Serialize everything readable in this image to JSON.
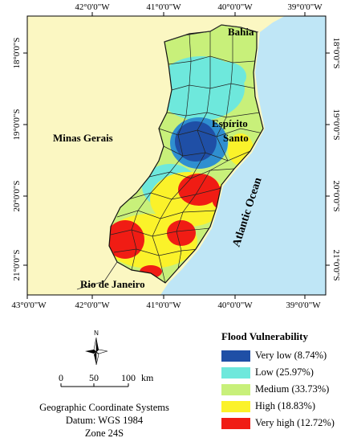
{
  "colors": {
    "background_land": "#fbf7c2",
    "ocean": "#bfe6f6",
    "very_low": "#1f4fa6",
    "low": "#6ee8dc",
    "medium": "#c8f07a",
    "high": "#fbf22a",
    "very_high": "#f01c14"
  },
  "axes": {
    "top_labels": [
      "42°0'0\"W",
      "41°0'0\"W",
      "40°0'0\"W",
      "39°0'0\"W"
    ],
    "bottom_labels": [
      "43°0'0\"W",
      "42°0'0\"W",
      "41°0'0\"W",
      "40°0'0\"W",
      "39°0'0\"W"
    ],
    "left_labels": [
      "18°0'0\"S",
      "19°0'0\"S",
      "20°0'0\"S",
      "21°0'0\"S"
    ],
    "right_labels": [
      "18°0'0\"S",
      "19°0'0\"S",
      "20°0'0\"S",
      "21°0'0\"S"
    ]
  },
  "regions": {
    "bahia": "Bahia",
    "minas_gerais": "Minas Gerais",
    "espirito": "Espírito",
    "santo": "Santo",
    "atlantic": "Atlantic Ocean",
    "rio": "Rio de Janeiro"
  },
  "north_arrow": {
    "label": "N"
  },
  "scale_bar": {
    "labels": [
      "0",
      "50",
      "100"
    ],
    "unit": "km"
  },
  "legend": {
    "title": "Flood Vulnerability",
    "items": [
      {
        "label": "Very low (8.74%)",
        "color": "#1f4fa6"
      },
      {
        "label": "Low (25.97%)",
        "color": "#6ee8dc"
      },
      {
        "label": "Medium (33.73%)",
        "color": "#c8f07a"
      },
      {
        "label": "High (18.83%)",
        "color": "#fbf22a"
      },
      {
        "label": "Very high (12.72%)",
        "color": "#f01c14"
      }
    ]
  },
  "crs": {
    "line1": "Geographic Coordinate Systems",
    "line2": "Datum: WGS 1984",
    "line3": "Zone 24S"
  }
}
